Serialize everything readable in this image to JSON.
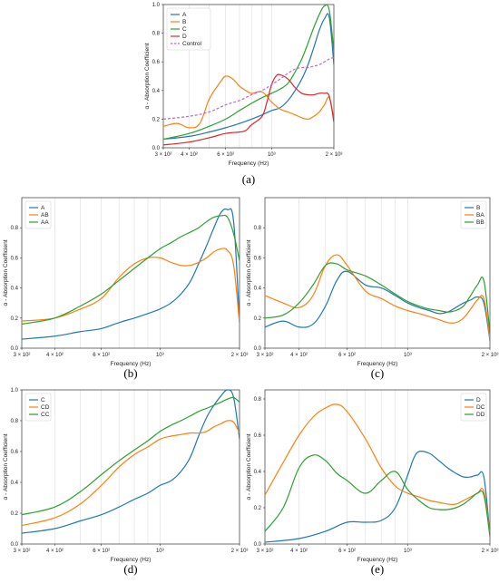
{
  "colors": {
    "blue": "#1f77b4",
    "orange": "#ff7f0e",
    "green": "#2ca02c",
    "red": "#d62728",
    "violet": "#b36ad9"
  },
  "chart_data": [
    {
      "type": "line",
      "panel_label": "(a)",
      "xscale": "log",
      "xlim": [
        300,
        2000
      ],
      "ylim": [
        0,
        1.0
      ],
      "xlabel": "Frequency (Hz)",
      "ylabel": "α - Absorption Coefficient",
      "yticks": [
        "0.0",
        "0.2",
        "0.4",
        "0.6",
        "0.8",
        "1.0"
      ],
      "xticks": [
        "3 × 10²",
        "4 × 10²",
        "6 × 10²",
        "10³",
        "2 × 10³"
      ],
      "legend": "top-left",
      "grid": "vertical",
      "series": [
        {
          "name": "A",
          "color": "blue",
          "x": [
            300,
            400,
            500,
            600,
            700,
            800,
            900,
            1000,
            1100,
            1200,
            1300,
            1400,
            1500,
            1600,
            1700,
            1800,
            1900,
            2000
          ],
          "y": [
            0.06,
            0.08,
            0.11,
            0.14,
            0.17,
            0.2,
            0.23,
            0.26,
            0.28,
            0.33,
            0.4,
            0.48,
            0.58,
            0.7,
            0.82,
            0.9,
            0.91,
            0.58
          ]
        },
        {
          "name": "B",
          "color": "orange",
          "x": [
            300,
            350,
            400,
            450,
            500,
            560,
            600,
            650,
            700,
            750,
            800,
            900,
            1000,
            1100,
            1200,
            1300,
            1400,
            1500,
            1600,
            1700,
            1800,
            1900,
            2000
          ],
          "y": [
            0.15,
            0.17,
            0.14,
            0.17,
            0.34,
            0.45,
            0.5,
            0.48,
            0.43,
            0.4,
            0.38,
            0.39,
            0.32,
            0.27,
            0.25,
            0.23,
            0.21,
            0.2,
            0.22,
            0.25,
            0.3,
            0.35,
            0.2
          ]
        },
        {
          "name": "C",
          "color": "green",
          "x": [
            300,
            400,
            500,
            600,
            700,
            800,
            900,
            1000,
            1100,
            1200,
            1300,
            1400,
            1500,
            1600,
            1700,
            1800,
            1900,
            2000
          ],
          "y": [
            0.06,
            0.1,
            0.15,
            0.2,
            0.26,
            0.31,
            0.35,
            0.38,
            0.41,
            0.45,
            0.53,
            0.62,
            0.73,
            0.84,
            0.93,
            0.99,
            0.96,
            0.67
          ]
        },
        {
          "name": "D",
          "color": "red",
          "x": [
            300,
            400,
            500,
            600,
            700,
            750,
            800,
            900,
            950,
            1000,
            1050,
            1100,
            1200,
            1300,
            1400,
            1500,
            1600,
            1700,
            1800,
            1900,
            2000
          ],
          "y": [
            0.02,
            0.04,
            0.07,
            0.1,
            0.11,
            0.12,
            0.16,
            0.22,
            0.32,
            0.44,
            0.5,
            0.51,
            0.48,
            0.42,
            0.38,
            0.37,
            0.37,
            0.38,
            0.38,
            0.36,
            0.18
          ]
        },
        {
          "name": "Control",
          "color": "violet",
          "dashed": true,
          "x": [
            300,
            400,
            500,
            600,
            700,
            800,
            900,
            1000,
            1100,
            1200,
            1300,
            1400,
            1500,
            1600,
            1700,
            1800,
            1900,
            2000
          ],
          "y": [
            0.2,
            0.22,
            0.25,
            0.3,
            0.33,
            0.37,
            0.4,
            0.44,
            0.48,
            0.52,
            0.55,
            0.56,
            0.56,
            0.57,
            0.58,
            0.6,
            0.62,
            0.63
          ]
        }
      ]
    },
    {
      "type": "line",
      "panel_label": "(b)",
      "xscale": "log",
      "xlim": [
        300,
        2000
      ],
      "ylim": [
        0,
        1.0
      ],
      "xlabel": "Frequency (Hz)",
      "ylabel": "α - Absorption Coefficient",
      "yticks": [
        "0.0",
        "0.2",
        "0.4",
        "0.6",
        "0.8"
      ],
      "xticks": [
        "3 × 10²",
        "4 × 10²",
        "6 × 10²",
        "10³",
        "2 × 10³"
      ],
      "legend": "top-left",
      "grid": "vertical",
      "series": [
        {
          "name": "A",
          "color": "blue",
          "x": [
            300,
            400,
            500,
            600,
            700,
            800,
            900,
            1000,
            1100,
            1200,
            1300,
            1400,
            1500,
            1600,
            1700,
            1800,
            1900,
            2000
          ],
          "y": [
            0.06,
            0.08,
            0.11,
            0.13,
            0.17,
            0.2,
            0.23,
            0.26,
            0.3,
            0.36,
            0.44,
            0.56,
            0.68,
            0.8,
            0.9,
            0.92,
            0.84,
            0.17
          ]
        },
        {
          "name": "AB",
          "color": "orange",
          "x": [
            300,
            400,
            500,
            600,
            700,
            800,
            900,
            1000,
            1100,
            1200,
            1300,
            1400,
            1500,
            1600,
            1700,
            1800,
            1900,
            2000
          ],
          "y": [
            0.18,
            0.2,
            0.26,
            0.33,
            0.47,
            0.56,
            0.6,
            0.6,
            0.57,
            0.55,
            0.55,
            0.57,
            0.6,
            0.64,
            0.66,
            0.65,
            0.55,
            0.16
          ]
        },
        {
          "name": "AA",
          "color": "green",
          "x": [
            300,
            400,
            500,
            600,
            700,
            800,
            900,
            1000,
            1100,
            1200,
            1300,
            1400,
            1500,
            1600,
            1700,
            1800,
            1900,
            2000
          ],
          "y": [
            0.16,
            0.2,
            0.28,
            0.36,
            0.45,
            0.53,
            0.6,
            0.66,
            0.7,
            0.74,
            0.77,
            0.8,
            0.84,
            0.87,
            0.88,
            0.87,
            0.76,
            0.58
          ]
        }
      ]
    },
    {
      "type": "line",
      "panel_label": "(c)",
      "xscale": "log",
      "xlim": [
        300,
        2000
      ],
      "ylim": [
        0,
        1.0
      ],
      "xlabel": "Frequency (Hz)",
      "ylabel": "α - Absorption Coefficient",
      "yticks": [
        "0.0",
        "0.2",
        "0.4",
        "0.6",
        "0.8"
      ],
      "xticks": [
        "3 × 10²",
        "4 × 10²",
        "6 × 10²",
        "10³",
        "2 × 10³"
      ],
      "legend": "top-right",
      "grid": "vertical",
      "series": [
        {
          "name": "B",
          "color": "blue",
          "x": [
            300,
            350,
            400,
            450,
            500,
            550,
            600,
            700,
            800,
            900,
            1000,
            1100,
            1200,
            1300,
            1400,
            1500,
            1600,
            1700,
            1800,
            1900,
            2000
          ],
          "y": [
            0.14,
            0.18,
            0.14,
            0.16,
            0.28,
            0.45,
            0.51,
            0.42,
            0.4,
            0.35,
            0.3,
            0.27,
            0.25,
            0.23,
            0.24,
            0.27,
            0.3,
            0.32,
            0.34,
            0.3,
            0.05
          ]
        },
        {
          "name": "BA",
          "color": "orange",
          "x": [
            300,
            350,
            400,
            450,
            500,
            550,
            600,
            700,
            800,
            900,
            1000,
            1100,
            1200,
            1300,
            1400,
            1500,
            1600,
            1700,
            1800,
            1900,
            2000
          ],
          "y": [
            0.35,
            0.3,
            0.27,
            0.35,
            0.55,
            0.62,
            0.55,
            0.38,
            0.33,
            0.28,
            0.25,
            0.23,
            0.21,
            0.19,
            0.17,
            0.17,
            0.2,
            0.26,
            0.32,
            0.33,
            0.06
          ]
        },
        {
          "name": "BB",
          "color": "green",
          "x": [
            300,
            350,
            400,
            450,
            500,
            550,
            600,
            700,
            800,
            900,
            1000,
            1100,
            1200,
            1300,
            1400,
            1500,
            1600,
            1700,
            1800,
            1900,
            2000
          ],
          "y": [
            0.2,
            0.22,
            0.3,
            0.42,
            0.55,
            0.56,
            0.52,
            0.48,
            0.42,
            0.36,
            0.31,
            0.28,
            0.26,
            0.25,
            0.24,
            0.25,
            0.28,
            0.35,
            0.42,
            0.45,
            0.1
          ]
        }
      ]
    },
    {
      "type": "line",
      "panel_label": "(d)",
      "xscale": "log",
      "xlim": [
        300,
        2000
      ],
      "ylim": [
        0,
        1.0
      ],
      "xlabel": "Frequency (Hz)",
      "ylabel": "α - Absorption Coefficient",
      "yticks": [
        "0.0",
        "0.2",
        "0.4",
        "0.6",
        "0.8",
        "1.0"
      ],
      "xticks": [
        "3 × 10²",
        "4 × 10²",
        "6 × 10²",
        "10³",
        "2 × 10³"
      ],
      "legend": "top-left",
      "grid": "vertical",
      "series": [
        {
          "name": "C",
          "color": "blue",
          "x": [
            300,
            400,
            500,
            600,
            700,
            800,
            900,
            1000,
            1100,
            1200,
            1300,
            1400,
            1500,
            1600,
            1700,
            1800,
            1900,
            2000
          ],
          "y": [
            0.07,
            0.1,
            0.15,
            0.19,
            0.24,
            0.29,
            0.33,
            0.38,
            0.41,
            0.47,
            0.56,
            0.7,
            0.82,
            0.9,
            0.96,
            1.0,
            0.95,
            0.68
          ]
        },
        {
          "name": "CD",
          "color": "orange",
          "x": [
            300,
            400,
            500,
            600,
            700,
            800,
            900,
            1000,
            1100,
            1200,
            1300,
            1400,
            1500,
            1600,
            1700,
            1800,
            1900,
            2000
          ],
          "y": [
            0.12,
            0.17,
            0.26,
            0.38,
            0.5,
            0.58,
            0.63,
            0.68,
            0.7,
            0.71,
            0.72,
            0.72,
            0.73,
            0.76,
            0.78,
            0.8,
            0.79,
            0.72
          ]
        },
        {
          "name": "CC",
          "color": "green",
          "x": [
            300,
            400,
            500,
            600,
            700,
            800,
            900,
            1000,
            1100,
            1200,
            1300,
            1400,
            1500,
            1600,
            1700,
            1800,
            1900,
            2000
          ],
          "y": [
            0.19,
            0.24,
            0.34,
            0.45,
            0.54,
            0.61,
            0.67,
            0.73,
            0.77,
            0.8,
            0.83,
            0.86,
            0.88,
            0.9,
            0.92,
            0.94,
            0.95,
            0.92
          ]
        }
      ]
    },
    {
      "type": "line",
      "panel_label": "(e)",
      "xscale": "log",
      "xlim": [
        300,
        2000
      ],
      "ylim": [
        0,
        0.85
      ],
      "xlabel": "Frequency (Hz)",
      "ylabel": "α - Absorption Coefficient",
      "yticks": [
        "0.0",
        "0.2",
        "0.4",
        "0.6",
        "0.8"
      ],
      "xticks": [
        "3 × 10²",
        "4 × 10²",
        "6 × 10²",
        "10³",
        "2 × 10³"
      ],
      "legend": "top-right",
      "grid": "vertical",
      "series": [
        {
          "name": "D",
          "color": "blue",
          "x": [
            300,
            400,
            500,
            600,
            700,
            800,
            900,
            1000,
            1050,
            1100,
            1200,
            1300,
            1400,
            1500,
            1600,
            1700,
            1800,
            1900,
            2000
          ],
          "y": [
            0.01,
            0.03,
            0.07,
            0.12,
            0.12,
            0.13,
            0.2,
            0.38,
            0.47,
            0.51,
            0.5,
            0.46,
            0.42,
            0.39,
            0.37,
            0.37,
            0.38,
            0.37,
            0.05
          ]
        },
        {
          "name": "DC",
          "color": "orange",
          "x": [
            300,
            350,
            400,
            450,
            500,
            550,
            600,
            700,
            800,
            900,
            1000,
            1100,
            1200,
            1300,
            1400,
            1500,
            1600,
            1700,
            1800,
            1900,
            2000
          ],
          "y": [
            0.27,
            0.45,
            0.6,
            0.7,
            0.75,
            0.77,
            0.73,
            0.58,
            0.42,
            0.32,
            0.28,
            0.26,
            0.24,
            0.23,
            0.22,
            0.22,
            0.24,
            0.26,
            0.28,
            0.29,
            0.05
          ]
        },
        {
          "name": "DD",
          "color": "green",
          "x": [
            300,
            350,
            400,
            450,
            500,
            550,
            600,
            700,
            800,
            900,
            1000,
            1100,
            1200,
            1300,
            1400,
            1500,
            1600,
            1700,
            1800,
            1900,
            2000
          ],
          "y": [
            0.07,
            0.2,
            0.42,
            0.49,
            0.46,
            0.39,
            0.35,
            0.28,
            0.35,
            0.4,
            0.3,
            0.24,
            0.2,
            0.19,
            0.19,
            0.2,
            0.22,
            0.25,
            0.28,
            0.27,
            0.04
          ]
        }
      ]
    }
  ]
}
